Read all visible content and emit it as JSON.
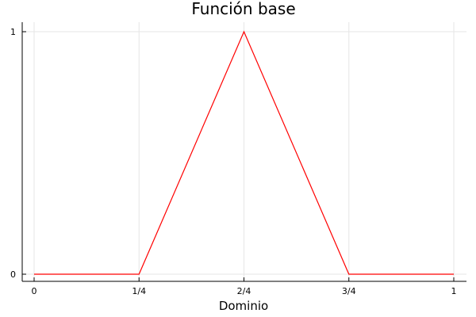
{
  "chart_data": {
    "type": "line",
    "title": "Función base",
    "xlabel": "Dominio",
    "ylabel": "",
    "xlim": [
      0,
      1
    ],
    "ylim": [
      0,
      1
    ],
    "xticks": [
      {
        "value": 0,
        "label": "0"
      },
      {
        "value": 0.25,
        "label": "1/4"
      },
      {
        "value": 0.5,
        "label": "2/4"
      },
      {
        "value": 0.75,
        "label": "3/4"
      },
      {
        "value": 1,
        "label": "1"
      }
    ],
    "yticks": [
      {
        "value": 0,
        "label": "0"
      },
      {
        "value": 1,
        "label": "1"
      }
    ],
    "grid": true,
    "legend": "none",
    "series": [
      {
        "color": "#ff0000",
        "x": [
          0,
          0.25,
          0.5,
          0.75,
          1
        ],
        "y": [
          0,
          0,
          1,
          0,
          0
        ]
      }
    ]
  }
}
